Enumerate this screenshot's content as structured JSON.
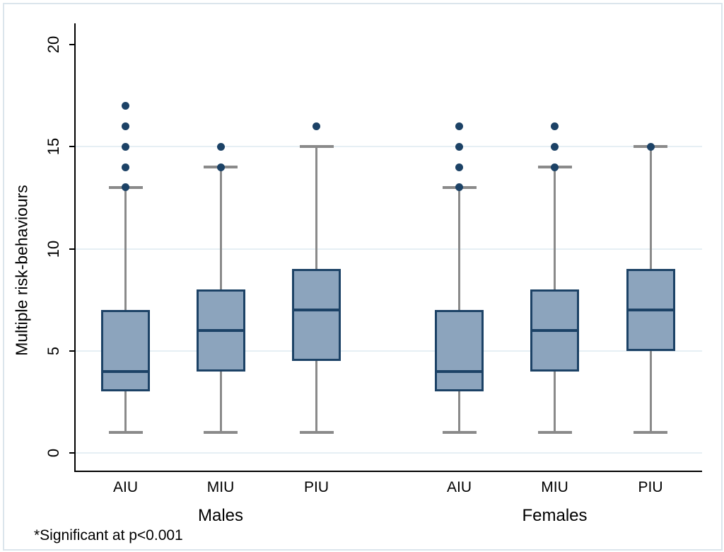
{
  "chart_data": {
    "type": "boxplot",
    "title": "",
    "ylabel": "Multiple risk-behaviours",
    "xlabel": "",
    "ylim": [
      0,
      20
    ],
    "yticks": [
      0,
      5,
      10,
      15,
      20
    ],
    "gridlines_at": [
      0,
      5,
      10,
      15
    ],
    "grid": true,
    "legend": "none",
    "groups": [
      {
        "label": "Males",
        "boxes": [
          {
            "category": "AIU",
            "whisker_low": 1,
            "q1": 3,
            "median": 4,
            "q3": 7,
            "whisker_high": 13,
            "outliers": [
              13,
              14,
              15,
              16,
              17
            ]
          },
          {
            "category": "MIU",
            "whisker_low": 1,
            "q1": 4,
            "median": 6,
            "q3": 8,
            "whisker_high": 14,
            "outliers": [
              14,
              15
            ]
          },
          {
            "category": "PIU",
            "whisker_low": 1,
            "q1": 4.5,
            "median": 7,
            "q3": 9,
            "whisker_high": 15,
            "outliers": [
              16
            ]
          }
        ]
      },
      {
        "label": "Females",
        "boxes": [
          {
            "category": "AIU",
            "whisker_low": 1,
            "q1": 3,
            "median": 4,
            "q3": 7,
            "whisker_high": 13,
            "outliers": [
              13,
              14,
              15,
              16
            ]
          },
          {
            "category": "MIU",
            "whisker_low": 1,
            "q1": 4,
            "median": 6,
            "q3": 8,
            "whisker_high": 14,
            "outliers": [
              14,
              15,
              16
            ]
          },
          {
            "category": "PIU",
            "whisker_low": 1,
            "q1": 5,
            "median": 7,
            "q3": 9,
            "whisker_high": 15,
            "outliers": [
              15
            ]
          }
        ]
      }
    ],
    "note": "*Significant at p<0.001",
    "colors": {
      "box_fill": "#8ca4bd",
      "box_border": "#1c4266",
      "median": "#1c4266",
      "outlier": "#1c4266",
      "whisker": "#8a8a8a",
      "gridline": "#e6eff4",
      "axis": "#000000",
      "figure_border": "#dbe5ec",
      "background": "#ffffff"
    }
  }
}
